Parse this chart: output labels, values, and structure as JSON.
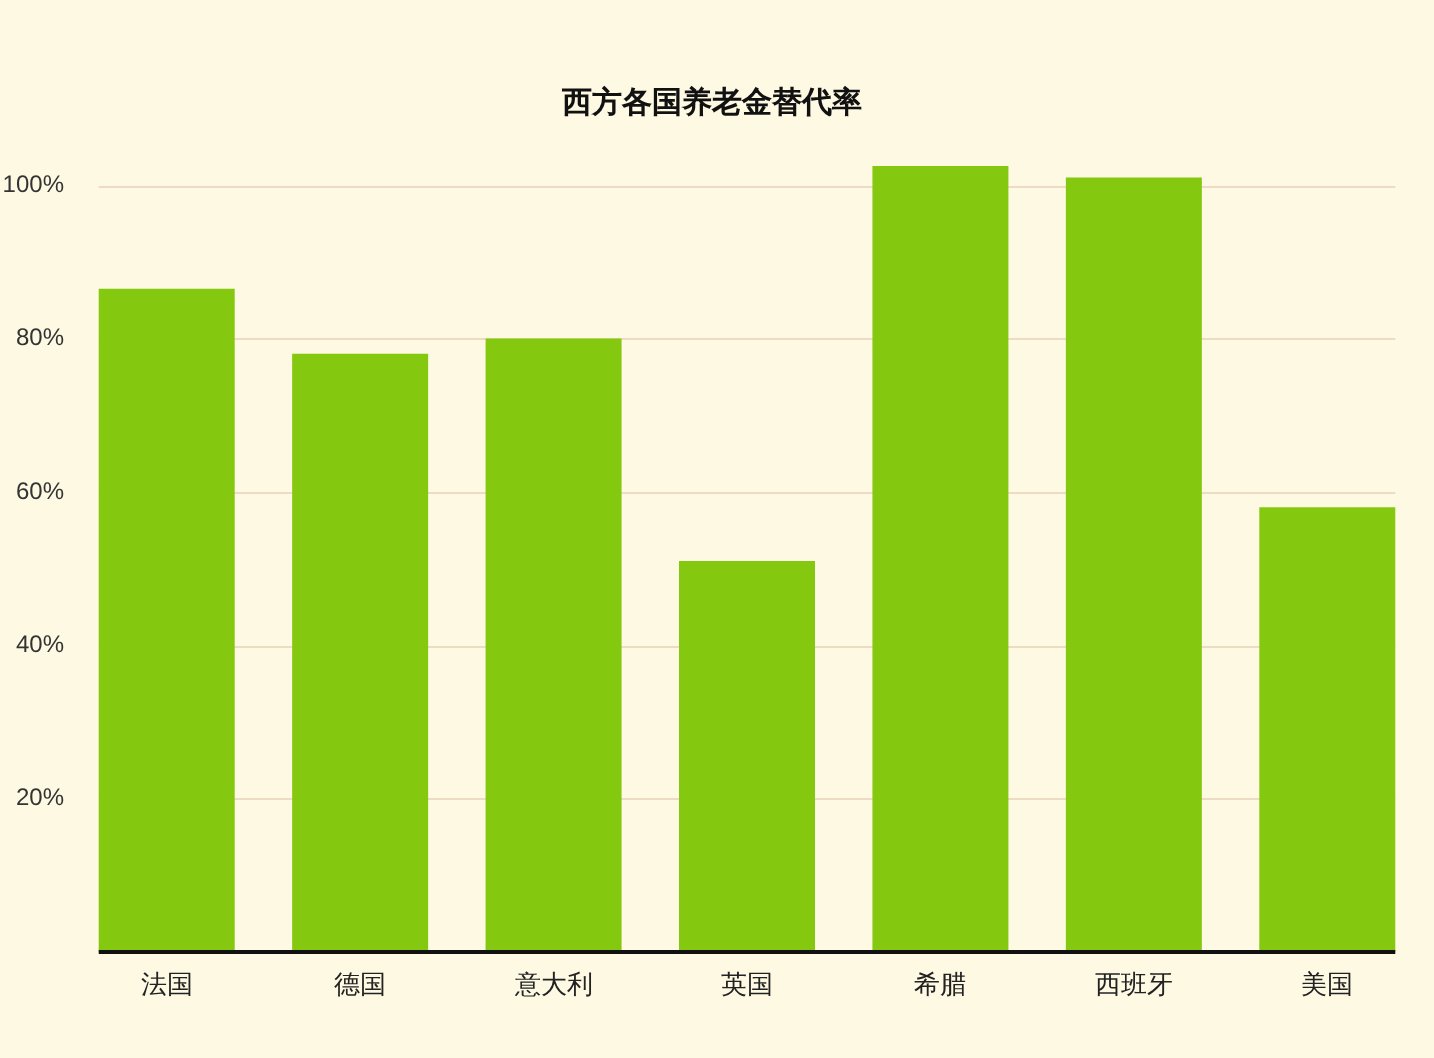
{
  "chart_data": {
    "type": "bar",
    "title": "西方各国养老金替代率",
    "categories": [
      "法国",
      "德国",
      "意大利",
      "英国",
      "希腊",
      "西班牙",
      "美国"
    ],
    "values": [
      86.5,
      78,
      80,
      51,
      102.5,
      101,
      58
    ],
    "color": "#84c80f",
    "ylim": [
      0,
      102.5
    ],
    "yticks": [
      {
        "value": 20,
        "label": "20%"
      },
      {
        "value": 40,
        "label": "40%"
      },
      {
        "value": 60,
        "label": "60%"
      },
      {
        "value": 80,
        "label": "80%"
      },
      {
        "value": 100,
        "label": "100%"
      }
    ],
    "grid": "y"
  }
}
